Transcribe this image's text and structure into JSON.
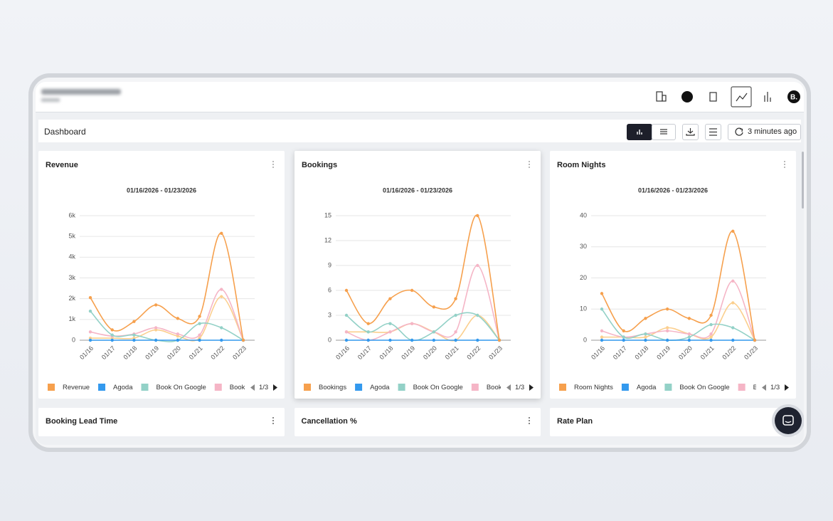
{
  "header": {
    "avatar": "B."
  },
  "toolbar": {
    "title": "Dashboard",
    "refresh": "3 minutes ago"
  },
  "chart_data": [
    {
      "type": "line",
      "title": "Revenue",
      "subtitle": "01/16/2026 - 01/23/2026",
      "categories": [
        "01/16",
        "01/17",
        "01/18",
        "01/19",
        "01/20",
        "01/21",
        "01/22",
        "01/23"
      ],
      "ylim": [
        0,
        6000
      ],
      "yticks": [
        0,
        {
          "value": 1000,
          "label": "1k"
        },
        {
          "value": 2000,
          "label": "2k"
        },
        {
          "value": 3000,
          "label": "3k"
        },
        {
          "value": 4000,
          "label": "4k"
        },
        {
          "value": 5000,
          "label": "5k"
        },
        {
          "value": 6000,
          "label": "6k"
        }
      ],
      "grid": true,
      "legend_page": "1/3",
      "series": [
        {
          "name": "Revenue",
          "color": "#f6a04d",
          "values": [
            2050,
            500,
            900,
            1700,
            1050,
            1150,
            5150,
            0
          ]
        },
        {
          "name": "Agoda",
          "color": "#3399ee",
          "values": [
            0,
            0,
            0,
            0,
            0,
            0,
            0,
            0
          ]
        },
        {
          "name": "Book On Google",
          "color": "#93d1c7",
          "values": [
            1400,
            250,
            250,
            0,
            0,
            800,
            600,
            0
          ]
        },
        {
          "name": "Bookin",
          "color": "#f5b5c6",
          "values": [
            400,
            200,
            300,
            600,
            300,
            250,
            2450,
            0
          ]
        },
        {
          "color": "#fbcf8e",
          "values": [
            100,
            100,
            100,
            500,
            200,
            100,
            2100,
            0
          ]
        }
      ]
    },
    {
      "type": "line",
      "title": "Bookings",
      "subtitle": "01/16/2026 - 01/23/2026",
      "categories": [
        "01/16",
        "01/17",
        "01/18",
        "01/19",
        "01/20",
        "01/21",
        "01/22",
        "01/23"
      ],
      "ylim": [
        0,
        15
      ],
      "yticks": [
        0,
        3,
        6,
        9,
        12,
        15
      ],
      "grid": true,
      "legend_page": "1/3",
      "series": [
        {
          "name": "Bookings",
          "color": "#f6a04d",
          "values": [
            6,
            2,
            5,
            6,
            4,
            5,
            15,
            0
          ]
        },
        {
          "name": "Agoda",
          "color": "#3399ee",
          "values": [
            0,
            0,
            0,
            0,
            0,
            0,
            0,
            0
          ]
        },
        {
          "name": "Book On Google",
          "color": "#93d1c7",
          "values": [
            3,
            1,
            2,
            0,
            1,
            3,
            3,
            0
          ]
        },
        {
          "name": "Bookir",
          "color": "#f5b5c6",
          "values": [
            1,
            0,
            1,
            2,
            1,
            1,
            9,
            0
          ]
        },
        {
          "color": "#fbcf8e",
          "values": [
            1,
            1,
            1,
            2,
            1,
            0,
            3,
            0
          ]
        }
      ]
    },
    {
      "type": "line",
      "title": "Room Nights",
      "subtitle": "01/16/2026 - 01/23/2026",
      "categories": [
        "01/16",
        "01/17",
        "01/18",
        "01/19",
        "01/20",
        "01/21",
        "01/22",
        "01/23"
      ],
      "ylim": [
        0,
        40
      ],
      "yticks": [
        0,
        10,
        20,
        30,
        40
      ],
      "grid": true,
      "legend_page": "1/3",
      "series": [
        {
          "name": "Room Nights",
          "color": "#f6a04d",
          "values": [
            15,
            3,
            7,
            10,
            7,
            8,
            35,
            0
          ]
        },
        {
          "name": "Agoda",
          "color": "#3399ee",
          "values": [
            0,
            0,
            0,
            0,
            0,
            0,
            0,
            0
          ]
        },
        {
          "name": "Book On Google",
          "color": "#93d1c7",
          "values": [
            10,
            1,
            2,
            0,
            1,
            5,
            4,
            0
          ]
        },
        {
          "name": "Bo",
          "color": "#f5b5c6",
          "values": [
            3,
            1,
            2,
            3,
            2,
            2,
            19,
            0
          ]
        },
        {
          "color": "#fbcf8e",
          "values": [
            1,
            1,
            1,
            4,
            2,
            1,
            12,
            0
          ]
        }
      ]
    }
  ],
  "lower_cards": [
    "Booking Lead Time",
    "Cancellation %",
    "Rate Plan"
  ]
}
